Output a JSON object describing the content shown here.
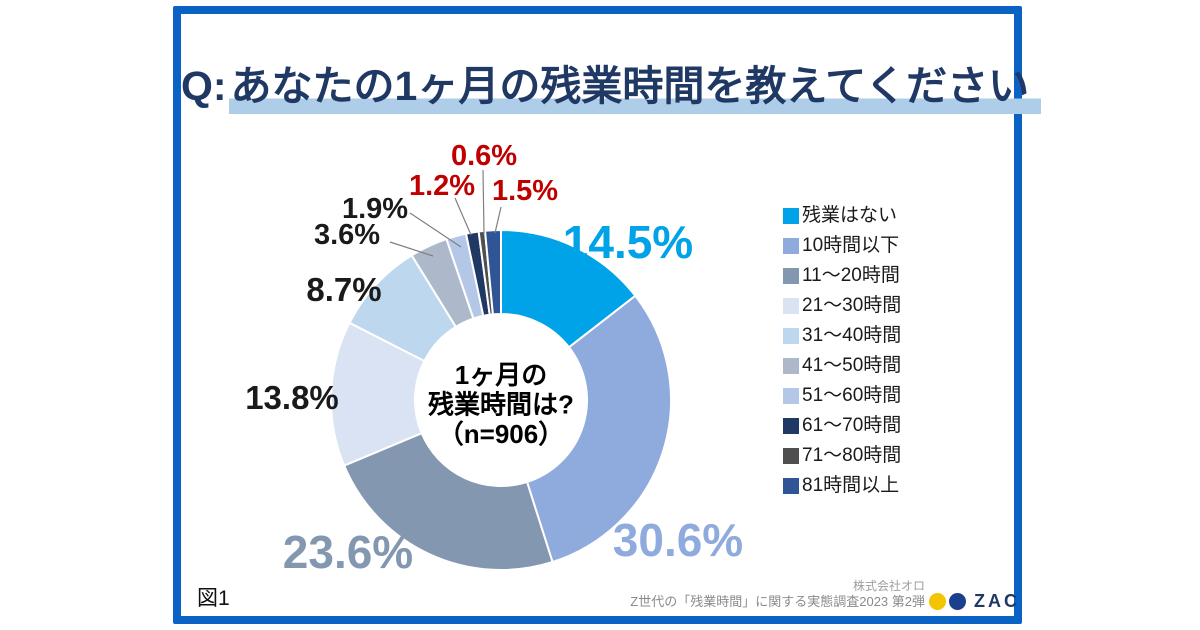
{
  "title": {
    "prefix": "Q:",
    "text": "あなたの1ヶ月の残業時間を教えてください"
  },
  "figure_label": "図1",
  "chart_data": {
    "type": "pie",
    "subtype": "donut",
    "question": "あなたの1ヶ月の残業時間を教えてください",
    "center_label": {
      "line1": "1ヶ月の",
      "line2": "残業時間は?",
      "line3": "（n=906）"
    },
    "sample_size": 906,
    "unit": "%",
    "legend_position": "right",
    "segments": [
      {
        "label": "残業はない",
        "value": 14.5,
        "color": "#00A2E8",
        "label_color": "#00A2E8"
      },
      {
        "label": "10時間以下",
        "value": 30.6,
        "color": "#8FAADC",
        "label_color": "#8FAADC"
      },
      {
        "label": "11～20時間",
        "value": 23.6,
        "color": "#8497B0",
        "label_color": "#8497B0"
      },
      {
        "label": "21～30時間",
        "value": 13.8,
        "color": "#DAE3F3",
        "label_color": "#1A1A1A"
      },
      {
        "label": "31～40時間",
        "value": 8.7,
        "color": "#BDD7EE",
        "label_color": "#1A1A1A"
      },
      {
        "label": "41～50時間",
        "value": 3.6,
        "color": "#ADB9CA",
        "label_color": "#1A1A1A"
      },
      {
        "label": "51～60時間",
        "value": 1.9,
        "color": "#B4C7E7",
        "label_color": "#1A1A1A"
      },
      {
        "label": "61～70時間",
        "value": 1.2,
        "color": "#203864",
        "label_color": "#C00000"
      },
      {
        "label": "71～80時間",
        "value": 0.6,
        "color": "#4F4F4F",
        "label_color": "#C00000"
      },
      {
        "label": "81時間以上",
        "value": 1.5,
        "color": "#2F5597",
        "label_color": "#C00000"
      }
    ]
  },
  "footer": {
    "credit_line1": "株式会社オロ",
    "credit_line2": "Z世代の「残業時間」に関する実態調査2023 第2弾",
    "logo_text": "ZAC"
  },
  "colors": {
    "frame_border": "#0A62C4",
    "title_text": "#1F3864",
    "title_highlight": "#AECDE8",
    "leader_line": "#808080",
    "center_text": "#000000",
    "footer_text": "#8C8C8C",
    "logo_yellow": "#F2C500",
    "logo_blue": "#1B3F8F",
    "logo_text_color": "#1F3864"
  }
}
